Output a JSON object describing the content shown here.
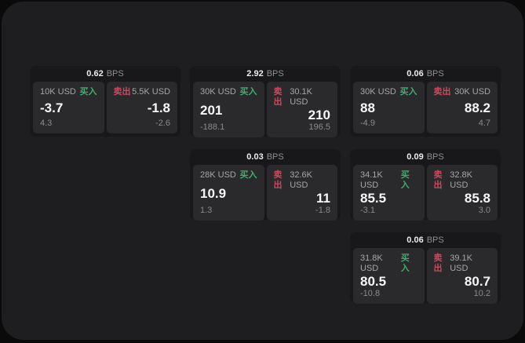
{
  "labels": {
    "bps_unit": "BPS",
    "buy": "买入",
    "sell": "卖出"
  },
  "colors": {
    "buy_green": "#3daf6f",
    "sell_red": "#c74b5f",
    "panel_background": "#1e1e20",
    "card_background": "#18181a",
    "tile_background": "#2a2a2c"
  },
  "cards": [
    {
      "grid": {
        "row": 0,
        "col": 0
      },
      "bps": "0.62",
      "buy": {
        "amount": "10K USD",
        "value": "-3.7",
        "delta": "4.3"
      },
      "sell": {
        "amount": "5.5K USD",
        "value": "-1.8",
        "delta": "-2.6"
      }
    },
    {
      "grid": {
        "row": 0,
        "col": 1
      },
      "bps": "2.92",
      "buy": {
        "amount": "30K USD",
        "value": "201",
        "delta": "-188.1"
      },
      "sell": {
        "amount": "30.1K USD",
        "value": "210",
        "delta": "196.5"
      }
    },
    {
      "grid": {
        "row": 0,
        "col": 2
      },
      "bps": "0.06",
      "buy": {
        "amount": "30K USD",
        "value": "88",
        "delta": "-4.9"
      },
      "sell": {
        "amount": "30K USD",
        "value": "88.2",
        "delta": "4.7"
      }
    },
    {
      "grid": {
        "row": 1,
        "col": 1
      },
      "bps": "0.03",
      "buy": {
        "amount": "28K USD",
        "value": "10.9",
        "delta": "1.3"
      },
      "sell": {
        "amount": "32.6K USD",
        "value": "11",
        "delta": "-1.8"
      }
    },
    {
      "grid": {
        "row": 1,
        "col": 2
      },
      "bps": "0.09",
      "buy": {
        "amount": "34.1K USD",
        "value": "85.5",
        "delta": "-3.1"
      },
      "sell": {
        "amount": "32.8K USD",
        "value": "85.8",
        "delta": "3.0"
      }
    },
    {
      "grid": {
        "row": 2,
        "col": 2
      },
      "bps": "0.06",
      "buy": {
        "amount": "31.8K USD",
        "value": "80.5",
        "delta": "-10.8"
      },
      "sell": {
        "amount": "39.1K USD",
        "value": "80.7",
        "delta": "10.2"
      }
    }
  ]
}
